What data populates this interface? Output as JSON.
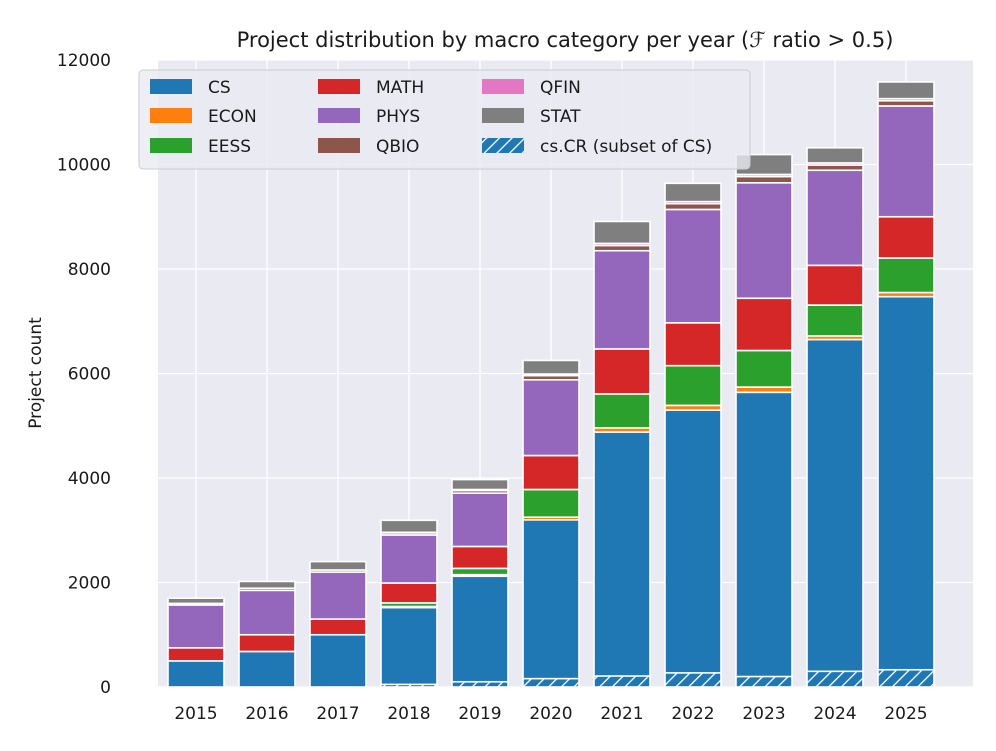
{
  "chart_data": {
    "type": "bar",
    "stacked": true,
    "title": "Project distribution by macro category per year (ℱ ratio > 0.5)",
    "xlabel": "",
    "ylabel": "Project count",
    "ylim": [
      0,
      12000
    ],
    "yticks": [
      0,
      2000,
      4000,
      6000,
      8000,
      10000,
      12000
    ],
    "grid": true,
    "legend_position": "top-left",
    "categories": [
      "2015",
      "2016",
      "2017",
      "2018",
      "2019",
      "2020",
      "2021",
      "2022",
      "2023",
      "2024",
      "2025"
    ],
    "series": [
      {
        "name": "CS",
        "color": "#1f77b4",
        "values": [
          500,
          680,
          1000,
          1520,
          2120,
          3200,
          4880,
          5300,
          5640,
          6650,
          7470
        ]
      },
      {
        "name": "ECON",
        "color": "#ff7f0e",
        "values": [
          0,
          0,
          0,
          20,
          30,
          50,
          80,
          90,
          100,
          70,
          80
        ]
      },
      {
        "name": "EESS",
        "color": "#2ca02c",
        "values": [
          0,
          0,
          0,
          70,
          120,
          530,
          650,
          760,
          700,
          590,
          660
        ]
      },
      {
        "name": "MATH",
        "color": "#d62728",
        "values": [
          250,
          320,
          300,
          380,
          420,
          650,
          860,
          820,
          1000,
          760,
          790
        ]
      },
      {
        "name": "PHYS",
        "color": "#9467bd",
        "values": [
          820,
          850,
          900,
          920,
          1020,
          1450,
          1880,
          2170,
          2210,
          1820,
          2120
        ]
      },
      {
        "name": "QBIO",
        "color": "#8c564b",
        "values": [
          30,
          40,
          40,
          40,
          50,
          80,
          100,
          110,
          120,
          100,
          100
        ]
      },
      {
        "name": "QFIN",
        "color": "#e377c2",
        "values": [
          0,
          0,
          0,
          10,
          20,
          30,
          40,
          40,
          40,
          40,
          40
        ]
      },
      {
        "name": "STAT",
        "color": "#7f7f7f",
        "values": [
          100,
          130,
          160,
          230,
          190,
          260,
          420,
          350,
          380,
          290,
          320
        ]
      }
    ],
    "overlay": {
      "name": "cs.CR (subset of CS)",
      "color": "#1f77b4",
      "pattern": "hatch",
      "values": [
        0,
        0,
        0,
        50,
        100,
        160,
        210,
        270,
        200,
        300,
        330
      ]
    }
  }
}
